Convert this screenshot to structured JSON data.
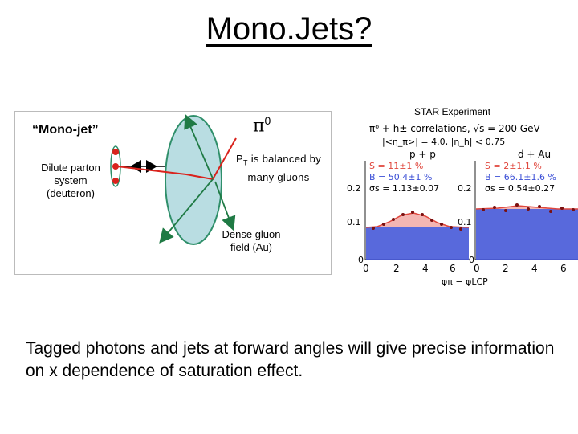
{
  "slide": {
    "title": "Mono.Jets?",
    "caption": "Tagged photons and jets at forward angles will give precise information on x dependence of saturation effect."
  },
  "diagram": {
    "mono_jet_label": "“Mono-jet”",
    "dilute_label": "Dilute parton system (deuteron)",
    "pi_symbol": "π",
    "pi_superscript": "0",
    "pt_p": "P",
    "pt_sub": "T",
    "pt_rest": " is balanced by many gluons",
    "dense_label": "Dense gluon field (Au)",
    "colors": {
      "ellipse_fill": "#b9dde2",
      "ellipse_stroke": "#2f8f6a",
      "jet_red": "#d9231d",
      "arrow_green": "#1f7a44"
    }
  },
  "plot": {
    "star_label": "STAR Experiment",
    "header": "π⁰ + h± correlations, √s = 200 GeV",
    "header2": "|<η_π>| = 4.0, |η_h| < 0.75",
    "panel_left_title": "p + p",
    "panel_right_title": "d + Au",
    "left_stats": [
      "S = 11±1 %",
      "B = 50.4±1 %",
      "σs = 1.13±0.07"
    ],
    "right_stats": [
      "S = 2±1.1 %",
      "B = 66.1±1.6 %",
      "σs = 0.54±0.27"
    ],
    "y_ticks_left": [
      "0.2",
      "0.1",
      "0"
    ],
    "y_ticks_right": [
      "0.2",
      "0.1",
      "0"
    ],
    "x_ticks_left": [
      "0",
      "2",
      "4",
      "6"
    ],
    "x_ticks_right": [
      "0",
      "2",
      "4",
      "6"
    ],
    "xlabel": "φπ − φLCP",
    "colors": {
      "red": "#e0463c",
      "blue": "#3b4fd6",
      "pink": "#f3b6b3"
    }
  }
}
